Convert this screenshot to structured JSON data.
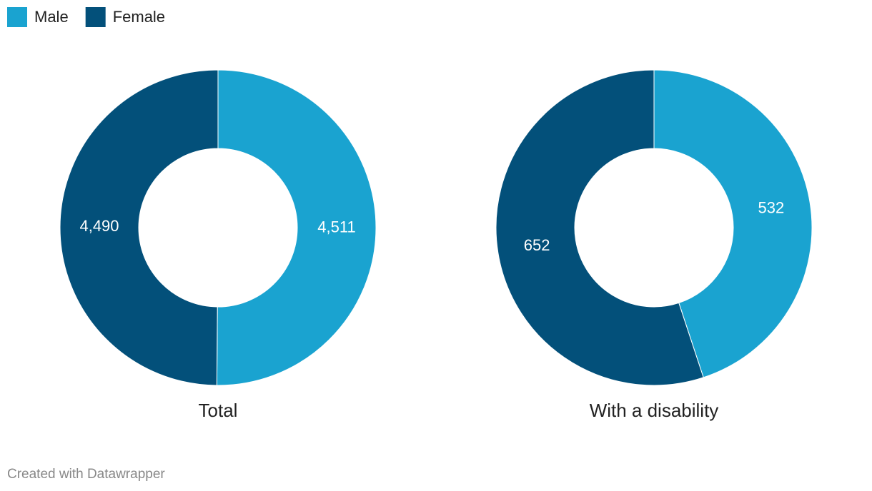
{
  "legend": [
    {
      "name": "Male",
      "color": "#1aa3d0"
    },
    {
      "name": "Female",
      "color": "#03507a"
    }
  ],
  "chart_data": [
    {
      "type": "donut",
      "title": "Total",
      "values": [
        4511,
        4490
      ],
      "value_labels": [
        "4,511",
        "4,490"
      ]
    },
    {
      "type": "donut",
      "title": "With a disability",
      "values": [
        532,
        652
      ],
      "value_labels": [
        "532",
        "652"
      ]
    }
  ],
  "credit": "Created with Datawrapper"
}
